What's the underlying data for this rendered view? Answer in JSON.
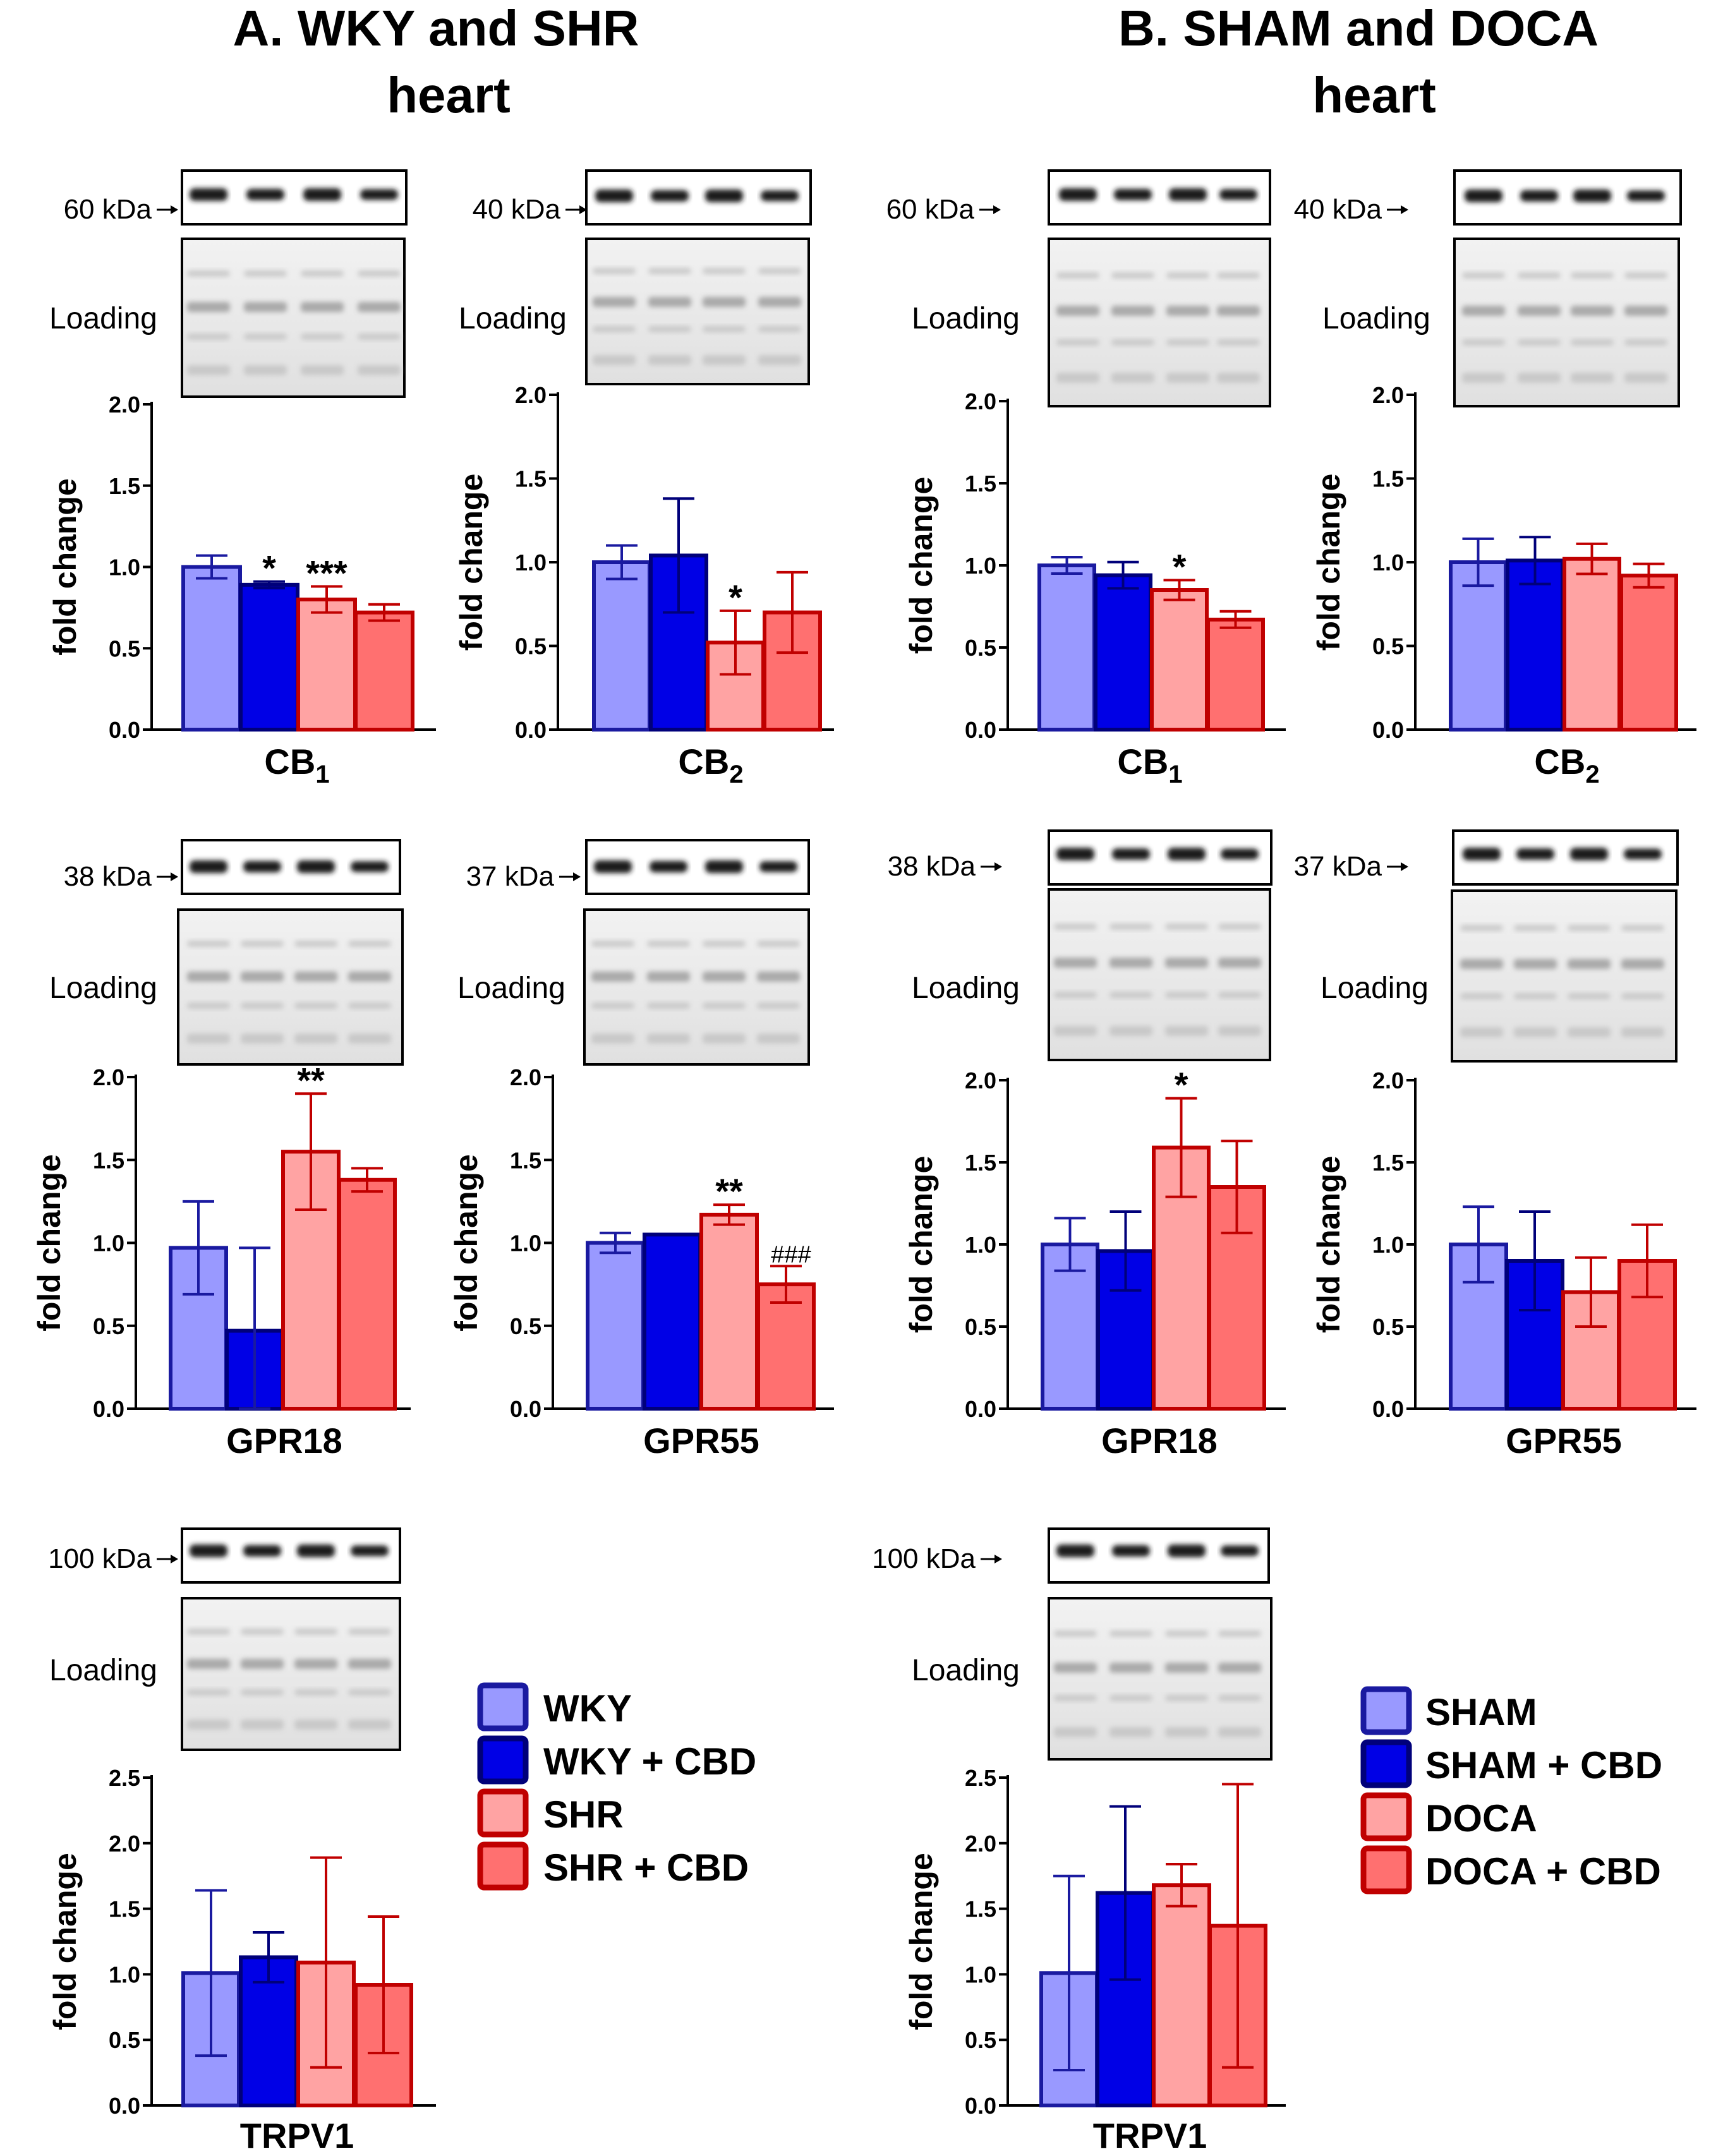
{
  "panel_titles": {
    "A": [
      "A. WKY and SHR",
      "heart"
    ],
    "B": [
      "B. SHAM and DOCA",
      "heart"
    ]
  },
  "loading_label": "Loading",
  "colors": {
    "group1_fill": "#9999ff",
    "group1_edge": "#1a1aa0",
    "group2_fill": "#0000e6",
    "group2_edge": "#00007a",
    "group3_fill": "#ffa3a3",
    "group3_edge": "#c00000",
    "group4_fill": "#ff7070",
    "group4_edge": "#c00000",
    "error_bar_A": [
      "#1a1aa0",
      "#00007a",
      "#c00000",
      "#c00000"
    ]
  },
  "legends": {
    "A": [
      "WKY",
      "WKY + CBD",
      "SHR",
      "SHR + CBD"
    ],
    "B": [
      "SHAM",
      "SHAM + CBD",
      "DOCA",
      "DOCA + CBD"
    ]
  },
  "chart_data": [
    {
      "id": "A-CB1",
      "type": "bar",
      "panel": "A",
      "title": "CB1",
      "title_base": "CB",
      "title_sub": "1",
      "marker": "60 kDa",
      "ylabel": "fold change",
      "ylim": [
        0,
        2.0
      ],
      "yticks": [
        "0.0",
        "0.5",
        "1.0",
        "1.5",
        "2.0"
      ],
      "categories": [
        "WKY",
        "WKY + CBD",
        "SHR",
        "SHR + CBD"
      ],
      "values": [
        1.0,
        0.89,
        0.8,
        0.72
      ],
      "errors": [
        0.07,
        0.02,
        0.08,
        0.05
      ],
      "annotations": [
        "",
        "*",
        "***",
        ""
      ]
    },
    {
      "id": "A-CB2",
      "type": "bar",
      "panel": "A",
      "title": "CB2",
      "title_base": "CB",
      "title_sub": "2",
      "marker": "40 kDa",
      "ylabel": "fold change",
      "ylim": [
        0,
        2.0
      ],
      "yticks": [
        "0.0",
        "0.5",
        "1.0",
        "1.5",
        "2.0"
      ],
      "categories": [
        "WKY",
        "WKY + CBD",
        "SHR",
        "SHR + CBD"
      ],
      "values": [
        1.0,
        1.04,
        0.52,
        0.7
      ],
      "errors": [
        0.1,
        0.34,
        0.19,
        0.24
      ],
      "annotations": [
        "",
        "",
        "*",
        ""
      ]
    },
    {
      "id": "B-CB1",
      "type": "bar",
      "panel": "B",
      "title": "CB1",
      "title_base": "CB",
      "title_sub": "1",
      "marker": "60 kDa",
      "ylabel": "fold change",
      "ylim": [
        0,
        2.0
      ],
      "yticks": [
        "0.0",
        "0.5",
        "1.0",
        "1.5",
        "2.0"
      ],
      "categories": [
        "SHAM",
        "SHAM + CBD",
        "DOCA",
        "DOCA + CBD"
      ],
      "values": [
        1.0,
        0.94,
        0.85,
        0.67
      ],
      "errors": [
        0.05,
        0.08,
        0.06,
        0.05
      ],
      "annotations": [
        "",
        "",
        "*",
        ""
      ]
    },
    {
      "id": "B-CB2",
      "type": "bar",
      "panel": "B",
      "title": "CB2",
      "title_base": "CB",
      "title_sub": "2",
      "marker": "40 kDa",
      "ylabel": "fold change",
      "ylim": [
        0,
        2.0
      ],
      "yticks": [
        "0.0",
        "0.5",
        "1.0",
        "1.5",
        "2.0"
      ],
      "categories": [
        "SHAM",
        "SHAM + CBD",
        "DOCA",
        "DOCA + CBD"
      ],
      "values": [
        1.0,
        1.01,
        1.02,
        0.92
      ],
      "errors": [
        0.14,
        0.14,
        0.09,
        0.07
      ],
      "annotations": [
        "",
        "",
        "",
        ""
      ]
    },
    {
      "id": "A-GPR18",
      "type": "bar",
      "panel": "A",
      "title": "GPR18",
      "title_base": "GPR18",
      "title_sub": "",
      "marker": "38 kDa",
      "ylabel": "fold change",
      "ylim": [
        0,
        2.0
      ],
      "yticks": [
        "0.0",
        "0.5",
        "1.0",
        "1.5",
        "2.0"
      ],
      "categories": [
        "WKY",
        "WKY + CBD",
        "SHR",
        "SHR + CBD"
      ],
      "values": [
        0.97,
        0.47,
        1.55,
        1.38
      ],
      "errors": [
        0.28,
        0.5,
        0.35,
        0.07
      ],
      "annotations": [
        "",
        "",
        "**",
        ""
      ]
    },
    {
      "id": "A-GPR55",
      "type": "bar",
      "panel": "A",
      "title": "GPR55",
      "title_base": "GPR55",
      "title_sub": "",
      "marker": "37 kDa",
      "ylabel": "fold change",
      "ylim": [
        0,
        2.0
      ],
      "yticks": [
        "0.0",
        "0.5",
        "1.0",
        "1.5",
        "2.0"
      ],
      "categories": [
        "WKY",
        "WKY + CBD",
        "SHR",
        "SHR + CBD"
      ],
      "values": [
        1.0,
        1.05,
        1.17,
        0.75
      ],
      "errors": [
        0.06,
        0.0,
        0.06,
        0.11
      ],
      "annotations": [
        "",
        "",
        "**",
        "###"
      ]
    },
    {
      "id": "B-GPR18",
      "type": "bar",
      "panel": "B",
      "title": "GPR18",
      "title_base": "GPR18",
      "title_sub": "",
      "marker": "38 kDa",
      "ylabel": "fold change",
      "ylim": [
        0,
        2.0
      ],
      "yticks": [
        "0.0",
        "0.5",
        "1.0",
        "1.5",
        "2.0"
      ],
      "categories": [
        "SHAM",
        "SHAM + CBD",
        "DOCA",
        "DOCA + CBD"
      ],
      "values": [
        1.0,
        0.96,
        1.59,
        1.35
      ],
      "errors": [
        0.16,
        0.24,
        0.3,
        0.28
      ],
      "annotations": [
        "",
        "",
        "*",
        ""
      ]
    },
    {
      "id": "B-GPR55",
      "type": "bar",
      "panel": "B",
      "title": "GPR55",
      "title_base": "GPR55",
      "title_sub": "",
      "marker": "37 kDa",
      "ylabel": "fold change",
      "ylim": [
        0,
        2.0
      ],
      "yticks": [
        "0.0",
        "0.5",
        "1.0",
        "1.5",
        "2.0"
      ],
      "categories": [
        "SHAM",
        "SHAM + CBD",
        "DOCA",
        "DOCA + CBD"
      ],
      "values": [
        1.0,
        0.9,
        0.71,
        0.9
      ],
      "errors": [
        0.23,
        0.3,
        0.21,
        0.22
      ],
      "annotations": [
        "",
        "",
        "",
        ""
      ]
    },
    {
      "id": "A-TRPV1",
      "type": "bar",
      "panel": "A",
      "title": "TRPV1",
      "title_base": "TRPV1",
      "title_sub": "",
      "marker": "100 kDa",
      "ylabel": "fold change",
      "ylim": [
        0,
        2.5
      ],
      "yticks": [
        "0.0",
        "0.5",
        "1.0",
        "1.5",
        "2.0",
        "2.5"
      ],
      "categories": [
        "WKY",
        "WKY + CBD",
        "SHR",
        "SHR + CBD"
      ],
      "values": [
        1.01,
        1.13,
        1.09,
        0.92
      ],
      "errors": [
        0.63,
        0.19,
        0.8,
        0.52
      ],
      "annotations": [
        "",
        "",
        "",
        ""
      ]
    },
    {
      "id": "B-TRPV1",
      "type": "bar",
      "panel": "B",
      "title": "TRPV1",
      "title_base": "TRPV1",
      "title_sub": "",
      "marker": "100 kDa",
      "ylabel": "fold change",
      "ylim": [
        0,
        2.5
      ],
      "yticks": [
        "1.0",
        "1.5",
        "2.0",
        "2.5"
      ],
      "ytick_extra": [
        "0.0",
        "0.5"
      ],
      "categories": [
        "SHAM",
        "SHAM + CBD",
        "DOCA",
        "DOCA + CBD"
      ],
      "values": [
        1.01,
        1.62,
        1.68,
        1.37
      ],
      "errors": [
        0.74,
        0.66,
        0.16,
        1.08
      ],
      "annotations": [
        "",
        "",
        "",
        ""
      ]
    }
  ]
}
